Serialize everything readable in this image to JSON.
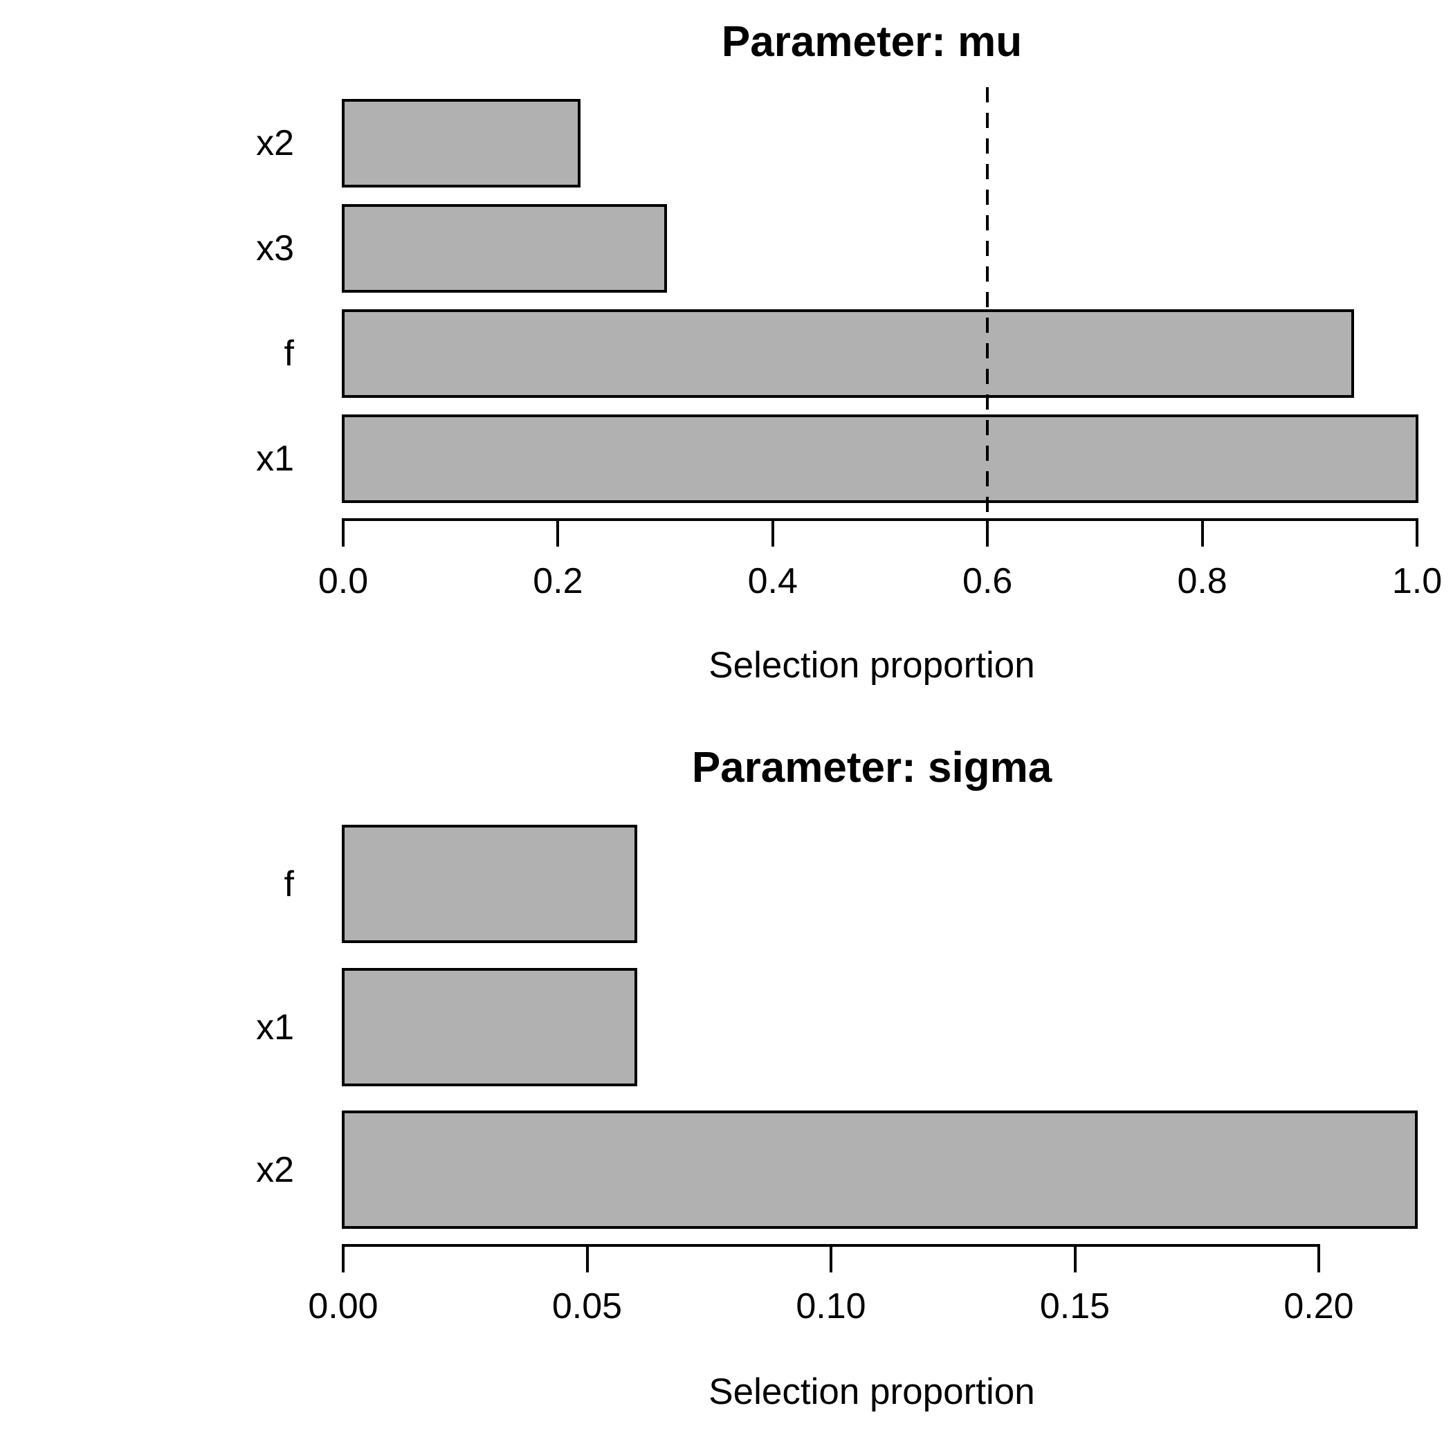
{
  "figure": {
    "background": "#ffffff",
    "text_color": "#000000"
  },
  "chart_data": [
    {
      "type": "bar",
      "orientation": "horizontal",
      "title": "Parameter: mu",
      "xlabel": "Selection proportion",
      "categories": [
        "x2",
        "x3",
        "f",
        "x1"
      ],
      "values": [
        0.22,
        0.3,
        0.94,
        1.0
      ],
      "xlim": [
        0.0,
        1.0
      ],
      "xticks": [
        0.0,
        0.2,
        0.4,
        0.6,
        0.8,
        1.0
      ],
      "xtick_labels": [
        "0.0",
        "0.2",
        "0.4",
        "0.6",
        "0.8",
        "1.0"
      ],
      "reference_line": {
        "value": 0.6,
        "style": "dashed",
        "orientation": "vertical"
      },
      "bar_fill": "#b1b1b1",
      "bar_border": "#000000",
      "grid": false,
      "legend": false
    },
    {
      "type": "bar",
      "orientation": "horizontal",
      "title": "Parameter: sigma",
      "xlabel": "Selection proportion",
      "categories": [
        "f",
        "x1",
        "x2"
      ],
      "values": [
        0.06,
        0.06,
        0.22
      ],
      "xlim": [
        0.0,
        0.22
      ],
      "xticks": [
        0.0,
        0.05,
        0.1,
        0.15,
        0.2
      ],
      "xtick_labels": [
        "0.00",
        "0.05",
        "0.10",
        "0.15",
        "0.20"
      ],
      "reference_line": null,
      "bar_fill": "#b1b1b1",
      "bar_border": "#000000",
      "grid": false,
      "legend": false
    }
  ]
}
